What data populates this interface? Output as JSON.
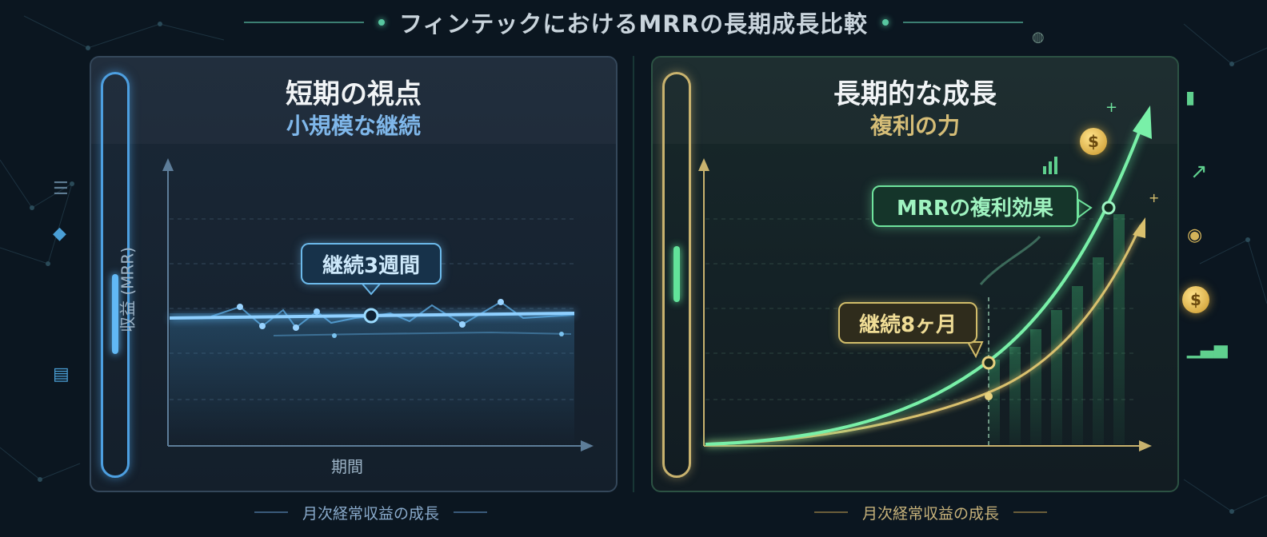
{
  "page_title": "フィンテックにおけるMRRの長期成長比較",
  "left_panel": {
    "title": "短期の視点",
    "subtitle": "小規模な継続",
    "callout": "継続3週間",
    "y_axis_label": "収益 (MRR)",
    "x_axis_label": "期間",
    "footer": "月次経常収益の成長"
  },
  "right_panel": {
    "title": "長期的な成長",
    "subtitle": "複利の力",
    "callout_top": "MRRの複利効果",
    "callout_bottom": "継続8ヶ月",
    "footer": "月次経常収益の成長"
  },
  "icons": {
    "coin_symbol": "$",
    "sparkle": "+"
  },
  "colors": {
    "short_term_accent": "#61b8f5",
    "long_term_accent": "#62e39a",
    "long_term_secondary": "#d9c06e"
  }
}
